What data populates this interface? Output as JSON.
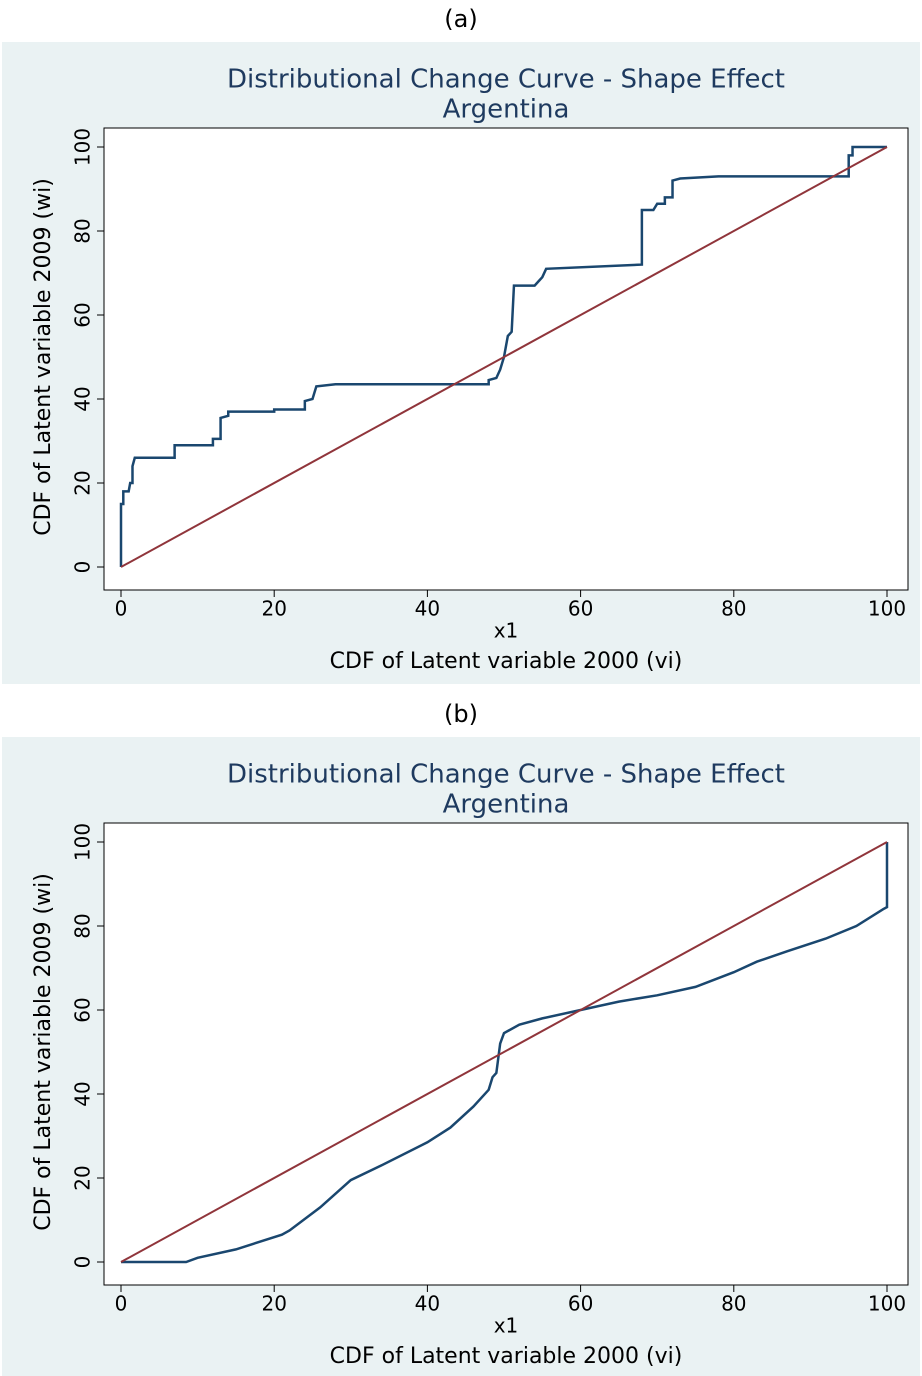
{
  "chart_data": [
    {
      "type": "line",
      "panel_label": "(a)",
      "title": "Distributional Change Curve - Shape Effect",
      "subtitle": "Argentina",
      "xlabel": "x1",
      "xlabel2": "CDF of Latent variable 2000 (vi)",
      "ylabel": "CDF of Latent variable 2009 (wi)",
      "xlim": [
        0,
        100
      ],
      "ylim": [
        0,
        100
      ],
      "xticks": [
        0,
        20,
        40,
        60,
        80,
        100
      ],
      "yticks": [
        0,
        20,
        40,
        60,
        80,
        100
      ],
      "grid": false,
      "series": [
        {
          "color": "#1a476f",
          "x": [
            0,
            0,
            0.3,
            0.3,
            1,
            1.2,
            1.5,
            1.5,
            1.8,
            7,
            7,
            12,
            12,
            13,
            13,
            14,
            14,
            20,
            20,
            24,
            24,
            25,
            25.5,
            28,
            48,
            48,
            49,
            49.5,
            50,
            50.5,
            51,
            51.3,
            54,
            54.5,
            55,
            55.5,
            68,
            68,
            69.5,
            70,
            71,
            71,
            72,
            72,
            73,
            78,
            95,
            95,
            95.5,
            95.5,
            100
          ],
          "values": [
            0,
            15,
            15,
            18,
            18,
            20,
            20,
            24,
            26,
            26,
            29,
            29,
            30.5,
            30.5,
            35.5,
            36,
            37,
            37,
            37.5,
            37.5,
            39.5,
            40,
            43,
            43.5,
            43.5,
            44.5,
            45,
            47,
            50,
            55,
            56,
            67,
            67,
            68,
            69,
            71,
            72,
            85,
            85,
            86.5,
            86.5,
            88,
            88,
            92,
            92.5,
            93,
            93,
            98,
            98,
            100,
            100
          ]
        },
        {
          "color": "#90353b",
          "x": [
            0,
            100
          ],
          "values": [
            0,
            100
          ]
        }
      ]
    },
    {
      "type": "line",
      "panel_label": "(b)",
      "title": "Distributional Change Curve - Shape Effect",
      "subtitle": "Argentina",
      "xlabel": "x1",
      "xlabel2": "CDF of Latent variable 2000 (vi)",
      "ylabel": "CDF of Latent variable 2009 (wi)",
      "xlim": [
        0,
        100
      ],
      "ylim": [
        0,
        100
      ],
      "xticks": [
        0,
        20,
        40,
        60,
        80,
        100
      ],
      "yticks": [
        0,
        20,
        40,
        60,
        80,
        100
      ],
      "grid": false,
      "series": [
        {
          "color": "#1a476f",
          "x": [
            0,
            8.5,
            10,
            15,
            21,
            22,
            26,
            30,
            34,
            40,
            43,
            46,
            48,
            48.5,
            49,
            49.5,
            50,
            52,
            55,
            60,
            65,
            70,
            75,
            80,
            83,
            87,
            92,
            96,
            99.5,
            100,
            100
          ],
          "values": [
            0,
            0,
            1,
            3,
            6.5,
            7.5,
            13,
            19.5,
            23,
            28.5,
            32,
            37,
            41,
            44,
            45,
            52,
            54.5,
            56.5,
            58,
            60,
            62,
            63.5,
            65.5,
            69,
            71.5,
            74,
            77,
            80,
            84,
            84.5,
            100
          ]
        },
        {
          "color": "#90353b",
          "x": [
            0,
            100
          ],
          "values": [
            0,
            100
          ]
        }
      ]
    }
  ]
}
